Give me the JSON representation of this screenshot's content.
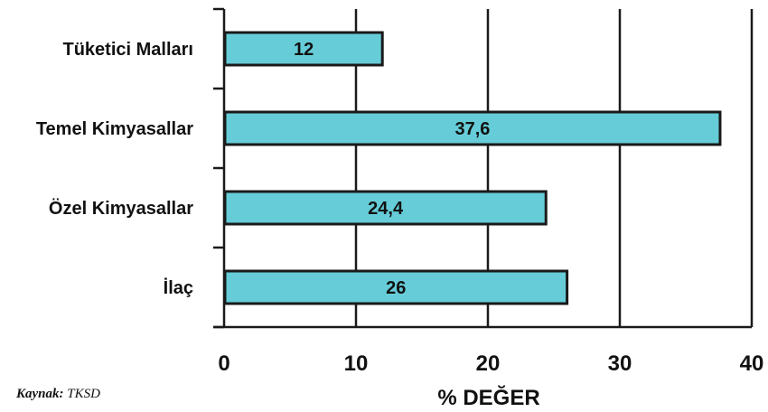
{
  "chart_data": {
    "type": "bar",
    "orientation": "horizontal",
    "categories": [
      "Tüketici Malları",
      "Temel Kimyasallar",
      "Özel Kimyasallar",
      "İlaç"
    ],
    "values": [
      12,
      37.6,
      24.4,
      26
    ],
    "value_labels": [
      "12",
      "37,6",
      "24,4",
      "26"
    ],
    "xlabel": "% DEĞER",
    "xlim": [
      0,
      40
    ],
    "xticks": [
      0,
      10,
      20,
      30,
      40
    ],
    "grid": "vertical",
    "bar_color": "#66cdd8",
    "bar_border_color": "#1a1a1a"
  },
  "source": {
    "label": "Kaynak:",
    "value": "TKSD"
  }
}
